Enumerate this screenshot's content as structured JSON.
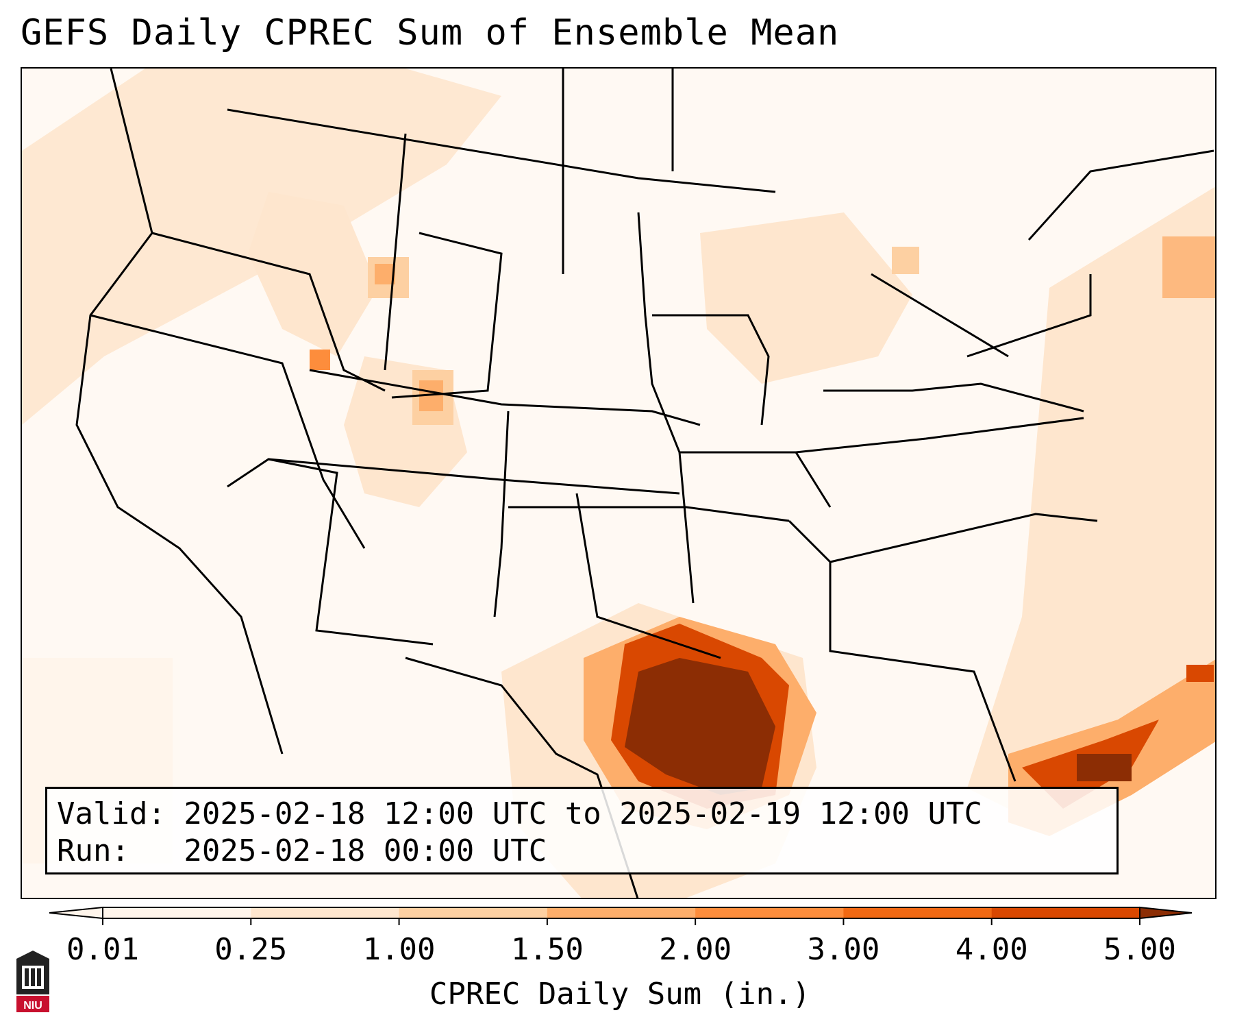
{
  "title": "GEFS Daily CPREC Sum of Ensemble Mean",
  "info": {
    "valid": "Valid: 2025-02-18 12:00 UTC to 2025-02-19 12:00 UTC",
    "run": "Run:   2025-02-18 00:00 UTC"
  },
  "colorbar": {
    "label": "CPREC Daily Sum (in.)",
    "ticks": [
      "0.01",
      "0.25",
      "1.00",
      "1.50",
      "2.00",
      "3.00",
      "4.00",
      "5.00"
    ],
    "colors": [
      "#fff5eb",
      "#fee6ce",
      "#fdd0a2",
      "#fdae6b",
      "#fd8d3c",
      "#f16913",
      "#d94801",
      "#8c2d04"
    ],
    "extend": "both"
  },
  "map": {
    "region": "CONUS",
    "precip_max_area": "Upper Texas coast / western Gulf of Mexico"
  },
  "logo": {
    "text": "NIU",
    "icon": "niu-logo-icon"
  }
}
